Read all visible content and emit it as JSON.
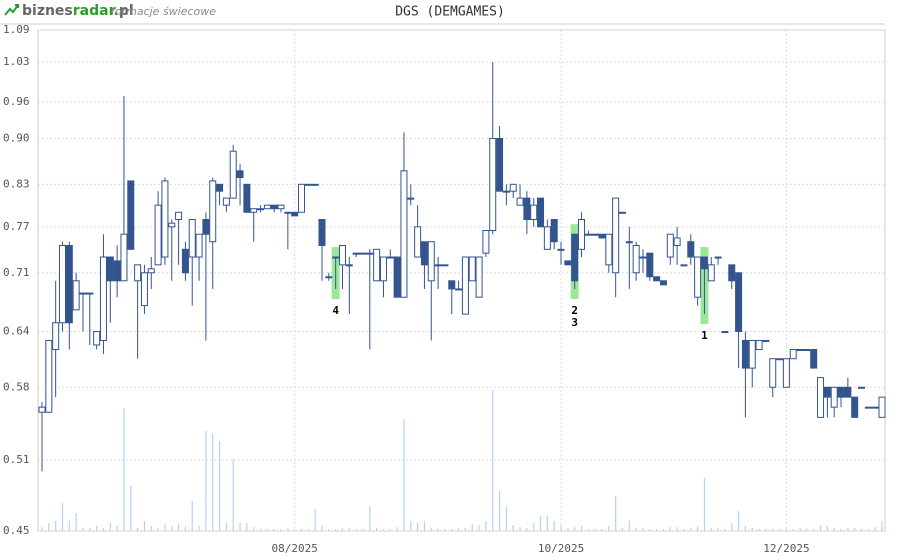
{
  "header": {
    "logo_parts": [
      "biznes",
      "radar",
      ".pl"
    ],
    "subtitle": "formacje świecowe"
  },
  "chart_data": {
    "type": "candlestick",
    "title": "DGS (DEMGAMES)",
    "log": true,
    "grid": true,
    "up_color": "#ffffff",
    "down_color": "#34548f",
    "volume_color": "#b3d3f2",
    "highlight_color": "#9be89b",
    "ylim": [
      0.45,
      1.09
    ],
    "yticks": [
      0.45,
      0.51,
      0.58,
      0.64,
      0.71,
      0.77,
      0.83,
      {
        "value": 0.9,
        "label": "0.90"
      },
      0.96,
      1.03,
      1.09
    ],
    "categories": [
      null,
      null,
      null,
      null,
      null,
      null,
      null,
      null,
      null,
      null,
      null,
      null,
      null,
      null,
      null,
      null,
      null,
      null,
      null,
      null,
      null,
      null,
      null,
      null,
      null,
      null,
      null,
      null,
      null,
      null,
      null,
      null,
      null,
      null,
      null,
      null,
      null,
      "08/2025",
      null,
      null,
      null,
      null,
      null,
      null,
      null,
      null,
      null,
      null,
      null,
      null,
      null,
      null,
      null,
      null,
      null,
      null,
      null,
      null,
      null,
      null,
      null,
      null,
      null,
      null,
      null,
      null,
      null,
      null,
      null,
      null,
      null,
      null,
      null,
      null,
      null,
      null,
      "10/2025",
      null,
      null,
      null,
      null,
      null,
      null,
      null,
      null,
      null,
      null,
      null,
      null,
      null,
      null,
      null,
      null,
      null,
      null,
      null,
      null,
      null,
      null,
      null,
      null,
      null,
      null,
      null,
      null,
      null,
      null,
      null,
      null,
      "12/2025",
      null,
      null,
      null,
      null,
      null,
      null,
      null,
      null,
      null,
      null,
      null,
      null,
      null,
      null
    ],
    "open": [
      0.555,
      0.555,
      0.62,
      0.65,
      0.745,
      0.665,
      0.685,
      0.685,
      0.625,
      0.63,
      0.73,
      0.725,
      0.7,
      0.835,
      0.7,
      0.67,
      0.71,
      0.72,
      0.73,
      0.77,
      0.78,
      0.74,
      0.73,
      0.73,
      0.78,
      0.75,
      0.83,
      0.8,
      0.81,
      0.85,
      0.83,
      0.79,
      0.795,
      0.795,
      0.8,
      0.795,
      0.79,
      0.79,
      0.79,
      0.83,
      0.83,
      0.78,
      0.705,
      0.73,
      0.72,
      0.72,
      0.735,
      0.735,
      0.735,
      0.7,
      0.7,
      0.73,
      0.73,
      0.68,
      0.81,
      0.73,
      0.75,
      0.7,
      0.72,
      0.72,
      0.7,
      0.69,
      0.66,
      0.7,
      0.68,
      0.735,
      0.765,
      0.9,
      0.82,
      0.82,
      0.8,
      0.81,
      0.78,
      0.81,
      0.74,
      0.78,
      0.74,
      0.725,
      0.76,
      0.74,
      0.76,
      0.76,
      0.76,
      0.72,
      0.71,
      0.79,
      0.75,
      0.71,
      0.73,
      0.735,
      0.705,
      0.7,
      0.73,
      0.745,
      0.72,
      0.75,
      0.68,
      0.73,
      0.7,
      0.73,
      0.64,
      0.72,
      0.71,
      0.63,
      0.6,
      0.62,
      0.63,
      0.58,
      0.61,
      0.58,
      0.61,
      0.62,
      0.62,
      0.62,
      0.55,
      0.58,
      0.56,
      0.58,
      0.58,
      0.57,
      0.58,
      0.56,
      0.56,
      0.55
    ],
    "high": [
      0.565,
      0.63,
      0.7,
      0.75,
      0.75,
      0.71,
      0.685,
      0.685,
      0.64,
      0.76,
      0.73,
      0.745,
      0.97,
      0.835,
      0.72,
      0.72,
      0.73,
      0.82,
      0.84,
      0.78,
      0.79,
      0.75,
      0.78,
      0.76,
      0.79,
      0.84,
      0.83,
      0.81,
      0.89,
      0.86,
      0.83,
      0.79,
      0.8,
      0.8,
      0.8,
      0.8,
      0.79,
      0.79,
      0.83,
      0.83,
      0.83,
      0.78,
      0.71,
      0.73,
      0.745,
      0.73,
      0.735,
      0.735,
      0.74,
      0.74,
      0.73,
      0.74,
      0.73,
      0.91,
      0.83,
      0.8,
      0.75,
      0.75,
      0.73,
      0.72,
      0.7,
      0.7,
      0.73,
      0.73,
      0.73,
      0.765,
      1.03,
      0.92,
      0.83,
      0.83,
      0.83,
      0.82,
      0.81,
      0.81,
      0.78,
      0.78,
      0.75,
      0.725,
      0.76,
      0.79,
      0.765,
      0.76,
      0.76,
      0.76,
      0.81,
      0.79,
      0.77,
      0.75,
      0.74,
      0.735,
      0.705,
      0.7,
      0.76,
      0.77,
      0.72,
      0.76,
      0.73,
      0.73,
      0.73,
      0.73,
      0.64,
      0.72,
      0.71,
      0.64,
      0.63,
      0.63,
      0.63,
      0.61,
      0.61,
      0.61,
      0.62,
      0.62,
      0.62,
      0.62,
      0.59,
      0.58,
      0.58,
      0.58,
      0.59,
      0.57,
      0.58,
      0.56,
      0.56,
      0.57
    ],
    "low": [
      0.5,
      0.555,
      0.57,
      0.64,
      0.62,
      0.665,
      0.64,
      0.625,
      0.62,
      0.615,
      0.65,
      0.68,
      0.7,
      0.74,
      0.61,
      0.66,
      0.69,
      0.72,
      0.72,
      0.7,
      0.72,
      0.7,
      0.67,
      0.7,
      0.63,
      0.69,
      0.8,
      0.79,
      0.81,
      0.8,
      0.79,
      0.75,
      0.79,
      0.795,
      0.79,
      0.79,
      0.74,
      0.785,
      0.79,
      0.83,
      0.83,
      0.7,
      0.7,
      0.69,
      0.69,
      0.66,
      0.73,
      0.735,
      0.62,
      0.7,
      0.68,
      0.73,
      0.68,
      0.68,
      0.8,
      0.73,
      0.69,
      0.63,
      0.69,
      0.72,
      0.66,
      0.69,
      0.66,
      0.7,
      0.68,
      0.73,
      0.76,
      0.82,
      0.8,
      0.81,
      0.8,
      0.76,
      0.77,
      0.77,
      0.74,
      0.74,
      0.72,
      0.72,
      0.69,
      0.73,
      0.76,
      0.76,
      0.755,
      0.71,
      0.68,
      0.79,
      0.69,
      0.7,
      0.71,
      0.7,
      0.7,
      0.695,
      0.72,
      0.72,
      0.72,
      0.72,
      0.67,
      0.66,
      0.7,
      0.72,
      0.64,
      0.69,
      0.6,
      0.55,
      0.58,
      0.62,
      0.63,
      0.57,
      0.61,
      0.58,
      0.61,
      0.62,
      0.62,
      0.6,
      0.55,
      0.55,
      0.55,
      0.56,
      0.57,
      0.55,
      0.58,
      0.56,
      0.56,
      0.55
    ],
    "close": [
      0.56,
      0.63,
      0.65,
      0.745,
      0.65,
      0.7,
      0.685,
      0.685,
      0.64,
      0.73,
      0.7,
      0.7,
      0.76,
      0.74,
      0.72,
      0.71,
      0.715,
      0.8,
      0.835,
      0.775,
      0.79,
      0.71,
      0.78,
      0.76,
      0.76,
      0.835,
      0.82,
      0.81,
      0.88,
      0.84,
      0.79,
      0.795,
      0.795,
      0.8,
      0.795,
      0.8,
      0.79,
      0.785,
      0.83,
      0.83,
      0.83,
      0.745,
      0.705,
      0.73,
      0.745,
      0.72,
      0.735,
      0.735,
      0.735,
      0.74,
      0.73,
      0.73,
      0.68,
      0.85,
      0.81,
      0.77,
      0.72,
      0.75,
      0.72,
      0.72,
      0.69,
      0.69,
      0.73,
      0.73,
      0.73,
      0.765,
      0.9,
      0.82,
      0.82,
      0.83,
      0.81,
      0.78,
      0.8,
      0.77,
      0.77,
      0.75,
      0.74,
      0.72,
      0.7,
      0.78,
      0.76,
      0.76,
      0.755,
      0.76,
      0.81,
      0.79,
      0.75,
      0.745,
      0.73,
      0.705,
      0.7,
      0.695,
      0.76,
      0.755,
      0.72,
      0.73,
      0.73,
      0.715,
      0.72,
      0.73,
      0.64,
      0.7,
      0.64,
      0.6,
      0.63,
      0.63,
      0.63,
      0.61,
      0.61,
      0.61,
      0.62,
      0.62,
      0.62,
      0.6,
      0.59,
      0.57,
      0.58,
      0.57,
      0.57,
      0.55,
      0.58,
      0.56,
      0.56,
      0.57
    ],
    "volume": [
      4,
      8,
      10,
      28,
      10,
      18,
      3,
      3,
      5,
      3,
      8,
      5,
      123,
      45,
      3,
      10,
      5,
      3,
      7,
      5,
      7,
      4,
      30,
      5,
      100,
      97,
      90,
      8,
      72,
      8,
      8,
      4,
      2,
      2,
      2,
      2,
      3,
      2,
      2,
      2,
      22,
      5,
      2,
      2,
      3,
      3,
      2,
      2,
      25,
      3,
      2,
      2,
      4,
      112,
      10,
      8,
      10,
      3,
      2,
      2,
      2,
      3,
      3,
      7,
      6,
      10,
      141,
      40,
      24,
      6,
      4,
      3,
      8,
      15,
      15,
      10,
      6,
      3,
      4,
      5,
      2,
      2,
      2,
      5,
      35,
      3,
      10,
      3,
      3,
      2,
      2,
      2,
      4,
      4,
      2,
      3,
      5,
      53,
      3,
      3,
      2,
      8,
      20,
      5,
      3,
      2,
      2,
      2,
      2,
      2,
      2,
      3,
      2,
      2,
      6,
      5,
      3,
      2,
      3,
      3,
      2,
      2,
      4,
      10
    ],
    "patterns": [
      null,
      null,
      null,
      null,
      null,
      null,
      null,
      null,
      null,
      null,
      null,
      null,
      null,
      null,
      null,
      null,
      null,
      null,
      null,
      null,
      null,
      null,
      null,
      null,
      null,
      null,
      null,
      null,
      null,
      null,
      null,
      null,
      null,
      null,
      null,
      null,
      null,
      null,
      null,
      null,
      null,
      null,
      null,
      [
        "4"
      ],
      null,
      null,
      null,
      null,
      null,
      null,
      null,
      null,
      null,
      null,
      null,
      null,
      null,
      null,
      null,
      null,
      null,
      null,
      null,
      null,
      null,
      null,
      null,
      null,
      null,
      null,
      null,
      null,
      null,
      null,
      null,
      null,
      null,
      null,
      [
        "2",
        "3"
      ],
      null,
      null,
      null,
      null,
      null,
      null,
      null,
      null,
      null,
      null,
      null,
      null,
      null,
      null,
      null,
      null,
      null,
      null,
      [
        "1"
      ],
      null,
      null,
      null,
      null,
      null,
      null,
      null,
      null,
      null,
      null,
      null,
      null,
      null,
      null,
      null,
      null,
      null,
      null,
      null,
      null,
      null,
      null,
      null,
      null,
      null,
      null
    ]
  }
}
